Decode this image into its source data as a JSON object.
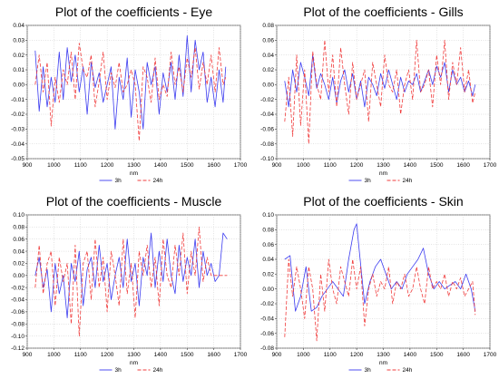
{
  "figure": {
    "caption_color_3h": "#3c3cf0",
    "caption_color_24h": "#f03c3c"
  },
  "chart_data": [
    {
      "type": "line",
      "title": "Plot of the coefficients - Eye",
      "xlabel": "nm",
      "ylabel": "",
      "xlim": [
        900,
        1700
      ],
      "ylim": [
        -0.05,
        0.04
      ],
      "xticks": [
        900,
        1000,
        1100,
        1200,
        1300,
        1400,
        1500,
        1600,
        1700
      ],
      "yticks": [
        -0.05,
        -0.04,
        -0.03,
        -0.02,
        -0.01,
        0.0,
        0.01,
        0.02,
        0.03,
        0.04
      ],
      "ytick_labels": [
        "-0.05",
        "-0.04",
        "-0.03",
        "-0.02",
        "-0.01",
        "0.00",
        "0.01",
        "0.02",
        "0.03",
        "0.04"
      ],
      "xtick_labels": [
        "900",
        "1000",
        "1100",
        "1200",
        "1300",
        "1400",
        "1500",
        "1600",
        "1700"
      ],
      "legend": "bottom-center",
      "series": [
        {
          "name": "3h",
          "color": "#3c3cf0",
          "dash": "solid",
          "x": [
            930,
            945,
            960,
            975,
            990,
            1005,
            1020,
            1035,
            1050,
            1065,
            1080,
            1095,
            1110,
            1125,
            1140,
            1155,
            1170,
            1185,
            1200,
            1215,
            1230,
            1245,
            1260,
            1275,
            1290,
            1305,
            1320,
            1335,
            1350,
            1365,
            1380,
            1395,
            1410,
            1425,
            1440,
            1455,
            1470,
            1485,
            1500,
            1515,
            1530,
            1545,
            1560,
            1575,
            1590,
            1605,
            1620,
            1635,
            1645
          ],
          "y": [
            0.023,
            -0.018,
            0.012,
            -0.015,
            0.005,
            -0.012,
            0.022,
            -0.01,
            0.025,
            0.002,
            0.02,
            -0.005,
            0.012,
            -0.02,
            0.015,
            -0.002,
            0.008,
            -0.012,
            0.0,
            0.012,
            -0.03,
            0.005,
            -0.01,
            0.018,
            -0.022,
            0.01,
            -0.005,
            -0.03,
            0.015,
            0.0,
            0.012,
            -0.02,
            0.008,
            -0.005,
            0.015,
            -0.01,
            0.02,
            -0.008,
            0.033,
            -0.005,
            0.03,
            0.01,
            0.022,
            -0.012,
            0.005,
            -0.015,
            0.01,
            -0.012,
            0.012
          ]
        },
        {
          "name": "24h",
          "color": "#f03c3c",
          "dash": "4,2",
          "x": [
            930,
            945,
            960,
            975,
            990,
            1005,
            1020,
            1035,
            1050,
            1065,
            1080,
            1095,
            1110,
            1125,
            1140,
            1155,
            1170,
            1185,
            1200,
            1215,
            1230,
            1245,
            1260,
            1275,
            1290,
            1305,
            1320,
            1335,
            1350,
            1365,
            1380,
            1395,
            1410,
            1425,
            1440,
            1455,
            1470,
            1485,
            1500,
            1515,
            1530,
            1545,
            1560,
            1575,
            1590,
            1605,
            1620,
            1635,
            1645
          ],
          "y": [
            0.0,
            0.02,
            -0.005,
            0.015,
            -0.028,
            0.005,
            -0.012,
            0.01,
            0.0,
            0.022,
            -0.01,
            0.028,
            0.01,
            0.005,
            0.02,
            -0.015,
            0.002,
            0.022,
            -0.01,
            0.008,
            -0.002,
            0.015,
            -0.005,
            0.0,
            0.01,
            0.0,
            -0.038,
            0.012,
            0.005,
            -0.012,
            0.018,
            -0.01,
            0.0,
            -0.008,
            0.022,
            0.0,
            0.012,
            -0.005,
            0.018,
            0.005,
            0.025,
            -0.003,
            0.015,
            0.0,
            0.02,
            -0.005,
            0.025,
            0.0,
            0.005
          ]
        }
      ]
    },
    {
      "type": "line",
      "title": "Plot of the coefficients - Gills",
      "xlabel": "nm",
      "ylabel": "",
      "xlim": [
        900,
        1700
      ],
      "ylim": [
        -0.1,
        0.08
      ],
      "xticks": [
        900,
        1000,
        1100,
        1200,
        1300,
        1400,
        1500,
        1600,
        1700
      ],
      "yticks": [
        -0.1,
        -0.08,
        -0.06,
        -0.04,
        -0.02,
        0.0,
        0.02,
        0.04,
        0.06,
        0.08
      ],
      "ytick_labels": [
        "-0.10",
        "-0.08",
        "-0.06",
        "-0.04",
        "-0.02",
        "0.00",
        "0.02",
        "0.04",
        "0.06",
        "0.08"
      ],
      "xtick_labels": [
        "900",
        "1000",
        "1100",
        "1200",
        "1300",
        "1400",
        "1500",
        "1600",
        "1700"
      ],
      "legend": "bottom-center",
      "series": [
        {
          "name": "3h",
          "color": "#3c3cf0",
          "dash": "solid",
          "x": [
            930,
            945,
            960,
            975,
            990,
            1005,
            1020,
            1035,
            1050,
            1065,
            1080,
            1095,
            1110,
            1125,
            1140,
            1155,
            1170,
            1185,
            1200,
            1215,
            1230,
            1245,
            1260,
            1275,
            1290,
            1305,
            1320,
            1335,
            1350,
            1365,
            1380,
            1395,
            1410,
            1425,
            1440,
            1455,
            1470,
            1485,
            1500,
            1515,
            1530,
            1545,
            1560,
            1575,
            1590,
            1605,
            1620,
            1635,
            1645
          ],
          "y": [
            0.005,
            -0.03,
            0.02,
            -0.01,
            0.03,
            0.01,
            -0.015,
            0.04,
            -0.005,
            0.015,
            0.0,
            -0.02,
            0.01,
            -0.025,
            0.005,
            0.02,
            -0.01,
            0.015,
            -0.02,
            0.005,
            -0.03,
            0.01,
            0.0,
            -0.015,
            0.015,
            -0.005,
            0.02,
            0.0,
            -0.02,
            0.01,
            -0.01,
            0.005,
            0.0,
            0.015,
            -0.01,
            0.005,
            0.02,
            0.0,
            0.025,
            0.01,
            0.03,
            -0.01,
            0.02,
            0.0,
            0.01,
            -0.01,
            0.005,
            -0.015,
            0.0
          ]
        },
        {
          "name": "24h",
          "color": "#f03c3c",
          "dash": "4,2",
          "x": [
            930,
            945,
            960,
            975,
            990,
            1005,
            1020,
            1035,
            1050,
            1065,
            1080,
            1095,
            1110,
            1125,
            1140,
            1155,
            1170,
            1185,
            1200,
            1215,
            1230,
            1245,
            1260,
            1275,
            1290,
            1305,
            1320,
            1335,
            1350,
            1365,
            1380,
            1395,
            1410,
            1425,
            1440,
            1455,
            1470,
            1485,
            1500,
            1515,
            1530,
            1545,
            1560,
            1575,
            1590,
            1605,
            1620,
            1635,
            1645
          ],
          "y": [
            -0.05,
            0.01,
            -0.07,
            0.04,
            -0.055,
            0.02,
            -0.08,
            0.045,
            0.0,
            -0.02,
            0.06,
            -0.01,
            0.04,
            -0.03,
            0.05,
            0.0,
            -0.04,
            0.03,
            -0.02,
            0.0,
            0.02,
            -0.05,
            0.03,
            0.0,
            -0.03,
            0.04,
            0.0,
            -0.01,
            0.02,
            -0.04,
            0.0,
            0.02,
            -0.02,
            0.06,
            -0.01,
            0.0,
            0.02,
            -0.03,
            0.04,
            0.0,
            0.06,
            -0.02,
            0.03,
            0.0,
            0.05,
            -0.01,
            0.02,
            -0.025,
            -0.01
          ]
        }
      ]
    },
    {
      "type": "line",
      "title": "Plot of the coefficients - Muscle",
      "xlabel": "nm",
      "ylabel": "",
      "xlim": [
        900,
        1700
      ],
      "ylim": [
        -0.12,
        0.1
      ],
      "xticks": [
        900,
        1000,
        1100,
        1200,
        1300,
        1400,
        1500,
        1600,
        1700
      ],
      "yticks": [
        -0.12,
        -0.1,
        -0.08,
        -0.06,
        -0.04,
        -0.02,
        0.0,
        0.02,
        0.04,
        0.06,
        0.08,
        0.1
      ],
      "ytick_labels": [
        "-0.12",
        "-0.10",
        "-0.08",
        "-0.06",
        "-0.04",
        "-0.02",
        "0.00",
        "0.02",
        "0.04",
        "0.06",
        "0.08",
        "0.10"
      ],
      "xtick_labels": [
        "900",
        "1000",
        "1100",
        "1200",
        "1300",
        "1400",
        "1500",
        "1600",
        "1700"
      ],
      "legend": "bottom-center",
      "series": [
        {
          "name": "3h",
          "color": "#3c3cf0",
          "dash": "solid",
          "x": [
            930,
            945,
            960,
            975,
            990,
            1005,
            1020,
            1035,
            1050,
            1065,
            1080,
            1095,
            1110,
            1125,
            1140,
            1155,
            1170,
            1185,
            1200,
            1215,
            1230,
            1245,
            1260,
            1275,
            1290,
            1305,
            1320,
            1335,
            1350,
            1365,
            1380,
            1395,
            1410,
            1425,
            1440,
            1455,
            1470,
            1485,
            1500,
            1515,
            1530,
            1545,
            1560,
            1575,
            1590,
            1605,
            1620,
            1635,
            1650
          ],
          "y": [
            0.0,
            0.03,
            -0.02,
            0.01,
            -0.06,
            0.02,
            -0.03,
            0.0,
            -0.07,
            0.02,
            -0.01,
            0.04,
            -0.05,
            0.01,
            0.03,
            -0.02,
            0.05,
            -0.01,
            0.02,
            -0.04,
            0.0,
            0.03,
            -0.02,
            0.06,
            -0.01,
            0.02,
            -0.05,
            0.03,
            0.0,
            0.07,
            -0.02,
            0.04,
            -0.01,
            0.06,
            0.0,
            -0.03,
            0.05,
            -0.01,
            0.03,
            0.0,
            0.06,
            -0.02,
            0.04,
            0.0,
            0.02,
            -0.01,
            0.0,
            0.07,
            0.06
          ]
        },
        {
          "name": "24h",
          "color": "#f03c3c",
          "dash": "4,2",
          "x": [
            930,
            945,
            960,
            975,
            990,
            1005,
            1020,
            1035,
            1050,
            1065,
            1080,
            1095,
            1110,
            1125,
            1140,
            1155,
            1170,
            1185,
            1200,
            1215,
            1230,
            1245,
            1260,
            1275,
            1290,
            1305,
            1320,
            1335,
            1350,
            1365,
            1380,
            1395,
            1410,
            1425,
            1440,
            1455,
            1470,
            1485,
            1500,
            1515,
            1530,
            1545,
            1560,
            1575,
            1590,
            1605,
            1620,
            1635,
            1650
          ],
          "y": [
            -0.02,
            0.05,
            -0.03,
            0.02,
            0.04,
            -0.05,
            0.03,
            -0.01,
            0.02,
            -0.08,
            0.05,
            -0.1,
            0.02,
            0.04,
            -0.04,
            0.06,
            -0.02,
            0.03,
            -0.06,
            0.04,
            0.0,
            -0.05,
            0.06,
            -0.03,
            0.02,
            -0.07,
            0.04,
            0.0,
            0.05,
            -0.02,
            0.03,
            -0.05,
            0.06,
            0.0,
            -0.02,
            0.05,
            0.0,
            0.07,
            -0.03,
            0.04,
            0.0,
            0.08,
            -0.01,
            0.03,
            0.0,
            0.0,
            0.0,
            0.0,
            0.0
          ]
        }
      ]
    },
    {
      "type": "line",
      "title": "Plot of the coefficients - Skin",
      "xlabel": "nm",
      "ylabel": "",
      "xlim": [
        900,
        1700
      ],
      "ylim": [
        -0.08,
        0.1
      ],
      "xticks": [
        900,
        1000,
        1100,
        1200,
        1300,
        1400,
        1500,
        1600,
        1700
      ],
      "yticks": [
        -0.08,
        -0.06,
        -0.04,
        -0.02,
        0.0,
        0.02,
        0.04,
        0.06,
        0.08,
        0.1
      ],
      "ytick_labels": [
        "-0.08",
        "-0.06",
        "-0.04",
        "-0.02",
        "0.00",
        "0.02",
        "0.04",
        "0.06",
        "0.08",
        "0.10"
      ],
      "xtick_labels": [
        "900",
        "1000",
        "1100",
        "1200",
        "1300",
        "1400",
        "1500",
        "1600",
        "1700"
      ],
      "legend": "bottom-center",
      "series": [
        {
          "name": "3h",
          "color": "#3c3cf0",
          "dash": "solid",
          "x": [
            930,
            950,
            970,
            990,
            1010,
            1030,
            1050,
            1070,
            1090,
            1110,
            1130,
            1150,
            1170,
            1190,
            1200,
            1210,
            1230,
            1250,
            1270,
            1290,
            1310,
            1330,
            1350,
            1370,
            1390,
            1410,
            1430,
            1450,
            1470,
            1490,
            1510,
            1530,
            1550,
            1570,
            1590,
            1610,
            1630,
            1645
          ],
          "y": [
            0.04,
            0.045,
            -0.03,
            -0.01,
            0.03,
            -0.03,
            -0.025,
            -0.01,
            0.0,
            0.01,
            0.0,
            -0.01,
            0.04,
            0.08,
            0.088,
            0.05,
            -0.02,
            0.01,
            0.03,
            0.04,
            0.02,
            0.0,
            0.01,
            0.0,
            0.02,
            0.03,
            0.04,
            0.055,
            0.02,
            0.0,
            0.01,
            0.0,
            0.005,
            0.01,
            0.0,
            0.02,
            0.0,
            -0.03
          ]
        },
        {
          "name": "24h",
          "color": "#f03c3c",
          "dash": "4,2",
          "x": [
            930,
            945,
            960,
            975,
            990,
            1005,
            1020,
            1035,
            1050,
            1065,
            1080,
            1095,
            1110,
            1125,
            1140,
            1155,
            1170,
            1185,
            1200,
            1215,
            1230,
            1245,
            1260,
            1275,
            1290,
            1305,
            1320,
            1335,
            1350,
            1365,
            1380,
            1395,
            1410,
            1425,
            1440,
            1455,
            1470,
            1485,
            1500,
            1515,
            1530,
            1545,
            1560,
            1575,
            1590,
            1605,
            1620,
            1635,
            1645
          ],
          "y": [
            -0.065,
            0.04,
            -0.01,
            0.03,
            0.0,
            -0.04,
            0.03,
            0.0,
            -0.07,
            0.02,
            -0.03,
            0.04,
            0.0,
            -0.02,
            0.03,
            0.01,
            -0.01,
            0.04,
            0.0,
            0.03,
            -0.05,
            0.0,
            0.02,
            -0.01,
            0.01,
            0.0,
            0.03,
            -0.02,
            0.01,
            0.0,
            0.02,
            -0.01,
            0.0,
            0.03,
            0.0,
            -0.02,
            0.03,
            0.0,
            0.01,
            0.0,
            0.02,
            -0.01,
            0.01,
            0.0,
            0.015,
            -0.01,
            0.0,
            0.01,
            -0.035
          ]
        }
      ]
    }
  ]
}
